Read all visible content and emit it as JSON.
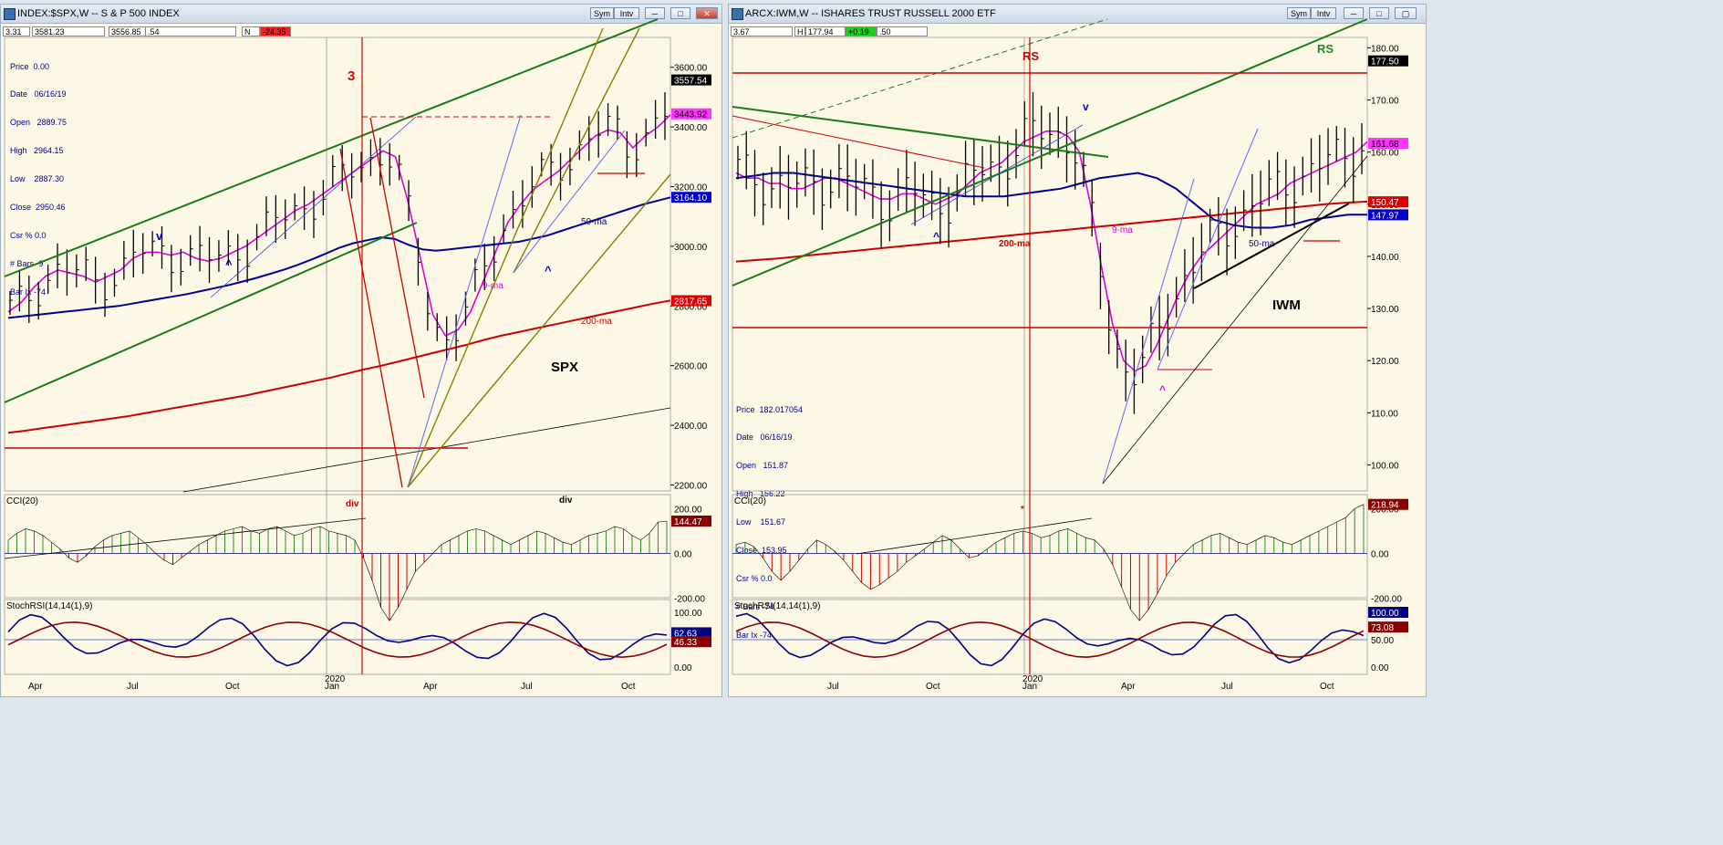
{
  "windows": {
    "left": {
      "title": "INDEX:$SPX,W -- S & P 500 INDEX",
      "data_fields": [
        "3.31",
        "3581.23",
        "3556.85",
        ".54",
        "N",
        "-24.35"
      ],
      "info_panel": [
        "Price  0.00",
        "Date   06/16/19",
        "Open   2889.75",
        "High   2964.15",
        "Low    2887.30",
        "Close  2950.46",
        "Csr % 0.0",
        "# Bars -9",
        "Bar Ix -74"
      ],
      "buttons": {
        "sym": "Sym",
        "intv": "Intv"
      }
    },
    "right": {
      "title": "ARCX:IWM,W -- ISHARES TRUST RUSSELL 2000 ETF",
      "data_fields": [
        "3.67",
        "H",
        "177.94",
        "+0.19",
        ".50"
      ],
      "info_panel": [
        "Price  182.017054",
        "Date   06/16/19",
        "Open   151.87",
        "High   156.22",
        "Low    151.67",
        "Close  153.95",
        "Csr % 0.0",
        "# Bars -74",
        "Bar Ix -74"
      ],
      "buttons": {
        "sym": "Sym",
        "intv": "Intv"
      }
    }
  },
  "chart_data": [
    {
      "type": "line",
      "panel": "price",
      "ticker_label": "SPX",
      "y_scale": "linear",
      "ylim": [
        2180,
        3700
      ],
      "yticks": [
        "3600.00",
        "3400.00",
        "3200.00",
        "3000.00",
        "2800.00",
        "2600.00",
        "2400.00",
        "2200.00"
      ],
      "ytick_values": [
        3600,
        3400,
        3200,
        3000,
        2800,
        2600,
        2400,
        2200
      ],
      "x_labels": [
        "Apr",
        "Jul",
        "Oct",
        "Jan",
        "Apr",
        "Jul",
        "Oct"
      ],
      "year_label": "2020",
      "last_values": [
        {
          "label": "3557.54",
          "value": 3557.54,
          "color": "#000000"
        },
        {
          "label": "3443.92",
          "value": 3443.92,
          "color": "#ff33ff"
        },
        {
          "label": "3164.10",
          "value": 3164.1,
          "color": "#0000cc"
        },
        {
          "label": "2817.65",
          "value": 2817.65,
          "color": "#dd0000"
        }
      ],
      "series": [
        {
          "name": "9-ma",
          "color": "#dd00dd",
          "values": [
            2780,
            2810,
            2860,
            2900,
            2920,
            2910,
            2900,
            2880,
            2900,
            2920,
            2960,
            2980,
            2980,
            2970,
            2980,
            2960,
            2950,
            2960,
            2980,
            3000,
            3030,
            3060,
            3090,
            3120,
            3140,
            3170,
            3200,
            3230,
            3260,
            3290,
            3320,
            3300,
            3150,
            2960,
            2770,
            2700,
            2720,
            2780,
            2880,
            2980,
            3080,
            3140,
            3190,
            3220,
            3250,
            3290,
            3330,
            3370,
            3390,
            3380,
            3330,
            3370,
            3400,
            3440
          ]
        },
        {
          "name": "50-ma",
          "color": "#000099",
          "values": [
            2760,
            2765,
            2770,
            2775,
            2780,
            2785,
            2790,
            2795,
            2800,
            2808,
            2816,
            2824,
            2832,
            2840,
            2850,
            2860,
            2870,
            2882,
            2894,
            2908,
            2922,
            2938,
            2956,
            2975,
            2995,
            3010,
            3020,
            3030,
            3025,
            3005,
            2990,
            2985,
            2990,
            2995,
            3000,
            3005,
            3010,
            3015,
            3025,
            3035,
            3050,
            3065,
            3080,
            3095,
            3110,
            3125,
            3140,
            3152,
            3164
          ]
        },
        {
          "name": "200-ma",
          "color": "#cc0000",
          "values": [
            2375,
            2382,
            2390,
            2398,
            2406,
            2414,
            2422,
            2430,
            2440,
            2450,
            2460,
            2470,
            2480,
            2490,
            2500,
            2512,
            2524,
            2536,
            2548,
            2560,
            2574,
            2588,
            2600,
            2614,
            2628,
            2642,
            2656,
            2670,
            2686,
            2700,
            2712,
            2724,
            2736,
            2748,
            2760,
            2772,
            2784,
            2796,
            2808,
            2818
          ]
        }
      ],
      "annotations": [
        {
          "text": "3",
          "color": "#dd0000"
        },
        {
          "text": "v",
          "color": "#0000cc"
        },
        {
          "text": "^",
          "color": "#0000cc"
        },
        {
          "text": "^",
          "color": "#0000cc"
        },
        {
          "text": "9-ma",
          "color": "#dd00dd"
        },
        {
          "text": "50-ma",
          "color": "#000099"
        },
        {
          "text": "200-ma",
          "color": "#cc0000"
        }
      ]
    },
    {
      "type": "bar",
      "panel": "cci",
      "label": "CCI(20)",
      "yticks": [
        "200.00",
        "0.00",
        "-200.00"
      ],
      "last_value": {
        "label": "144.47",
        "value": 144.47,
        "color": "#8b0000"
      },
      "annotations": [
        {
          "text": "div",
          "color": "#cc0000"
        },
        {
          "text": "div",
          "color": "#000000"
        }
      ],
      "values": [
        60,
        90,
        110,
        100,
        80,
        50,
        20,
        -20,
        -40,
        -10,
        30,
        60,
        80,
        90,
        100,
        70,
        40,
        0,
        -30,
        -50,
        -20,
        10,
        40,
        60,
        80,
        100,
        110,
        120,
        100,
        90,
        110,
        120,
        100,
        80,
        90,
        110,
        120,
        100,
        90,
        80,
        60,
        -20,
        -120,
        -240,
        -300,
        -240,
        -160,
        -80,
        -40,
        0,
        40,
        60,
        80,
        100,
        110,
        100,
        80,
        60,
        40,
        60,
        80,
        100,
        90,
        70,
        50,
        40,
        60,
        80,
        90,
        100,
        120,
        110,
        80,
        60,
        90,
        140,
        144
      ]
    },
    {
      "type": "line",
      "panel": "stochrsi",
      "label": "StochRSI(14,14(1),9)",
      "yticks": [
        "100.00",
        "0.00"
      ],
      "last_values": [
        {
          "label": "62.63",
          "value": 62.63,
          "color": "#000080"
        },
        {
          "label": "46.33",
          "value": 46.33,
          "color": "#8b0000"
        }
      ]
    },
    {
      "type": "line",
      "panel": "price",
      "ticker_label": "IWM",
      "y_scale": "linear",
      "ylim": [
        95,
        182
      ],
      "yticks": [
        "180.00",
        "170.00",
        "160.00",
        "150.00",
        "140.00",
        "130.00",
        "120.00",
        "110.00",
        "100.00"
      ],
      "ytick_values": [
        180,
        170,
        160,
        150,
        140,
        130,
        120,
        110,
        100
      ],
      "x_labels": [
        "Jul",
        "Oct",
        "Jan",
        "Apr",
        "Jul",
        "Oct"
      ],
      "year_label": "2020",
      "last_values": [
        {
          "label": "177.50",
          "value": 177.5,
          "color": "#000000"
        },
        {
          "label": "161.68",
          "value": 161.68,
          "color": "#ff33ff"
        },
        {
          "label": "150.47",
          "value": 150.47,
          "color": "#dd0000"
        },
        {
          "label": "147.97",
          "value": 147.97,
          "color": "#0000cc"
        }
      ],
      "series": [
        {
          "name": "9-ma",
          "color": "#dd00dd",
          "values": [
            156,
            155,
            155,
            154,
            154,
            153,
            153,
            154,
            155,
            155,
            154,
            153,
            152,
            151,
            151,
            152,
            152,
            151,
            150,
            151,
            152,
            154,
            156,
            157,
            158,
            160,
            162,
            163,
            164,
            164,
            163,
            160,
            150,
            138,
            127,
            120,
            118,
            119,
            123,
            128,
            133,
            137,
            140,
            142,
            144,
            146,
            148,
            150,
            151,
            152,
            154,
            155,
            156,
            157,
            158,
            159,
            160,
            162
          ]
        },
        {
          "name": "50-ma",
          "color": "#000099",
          "values": [
            155,
            155.5,
            156,
            156,
            155.5,
            155,
            154.5,
            154,
            153.5,
            153,
            152.5,
            152,
            151.5,
            151.5,
            151.5,
            152,
            152.5,
            153,
            154,
            155,
            155.5,
            156,
            155,
            153,
            150,
            147,
            146,
            145.5,
            145.5,
            146,
            147,
            147.5,
            148,
            148
          ]
        },
        {
          "name": "200-ma",
          "color": "#cc0000",
          "values": [
            139,
            139.3,
            139.6,
            140,
            140.4,
            140.8,
            141.2,
            141.6,
            142,
            142.4,
            142.8,
            143.2,
            143.6,
            144,
            144.4,
            144.8,
            145.2,
            145.6,
            146,
            146.4,
            146.8,
            147.2,
            147.6,
            148,
            148.4,
            148.8,
            149.2,
            149.6,
            150,
            150.3,
            150.5
          ]
        }
      ],
      "annotations": [
        {
          "text": "RS",
          "color": "#cc0000"
        },
        {
          "text": "RS",
          "color": "#228b22"
        },
        {
          "text": "v",
          "color": "#0000cc"
        },
        {
          "text": "^",
          "color": "#0000cc"
        },
        {
          "text": "^",
          "color": "#dd00dd"
        },
        {
          "text": "9-ma",
          "color": "#dd00dd"
        },
        {
          "text": "50-ma",
          "color": "#000099"
        },
        {
          "text": "200-ma",
          "color": "#cc0000"
        }
      ]
    },
    {
      "type": "bar",
      "panel": "cci",
      "label": "CCI(20)",
      "yticks": [
        "200.00",
        "0.00",
        "-200.00"
      ],
      "last_value": {
        "label": "218.94",
        "value": 218.94,
        "color": "#8b0000"
      },
      "annotations": [
        {
          "text": "*",
          "color": "#dd0000"
        }
      ],
      "values": [
        40,
        50,
        30,
        -20,
        -80,
        -120,
        -80,
        -30,
        20,
        60,
        40,
        10,
        -30,
        -80,
        -130,
        -160,
        -140,
        -110,
        -80,
        -40,
        -10,
        20,
        50,
        80,
        60,
        20,
        -20,
        -10,
        20,
        50,
        70,
        90,
        100,
        90,
        70,
        80,
        100,
        110,
        90,
        70,
        60,
        20,
        -50,
        -150,
        -250,
        -300,
        -250,
        -180,
        -100,
        -40,
        0,
        40,
        60,
        80,
        90,
        70,
        50,
        40,
        60,
        80,
        70,
        50,
        40,
        60,
        80,
        100,
        120,
        140,
        160,
        200,
        219
      ]
    },
    {
      "type": "line",
      "panel": "stochrsi",
      "label": "StochRSI(14,14(1),9)",
      "yticks": [
        "100.00",
        "50.00",
        "0.00"
      ],
      "last_values": [
        {
          "label": "100.00",
          "value": 100.0,
          "color": "#000080"
        },
        {
          "label": "73.08",
          "value": 73.08,
          "color": "#8b0000"
        }
      ]
    }
  ]
}
